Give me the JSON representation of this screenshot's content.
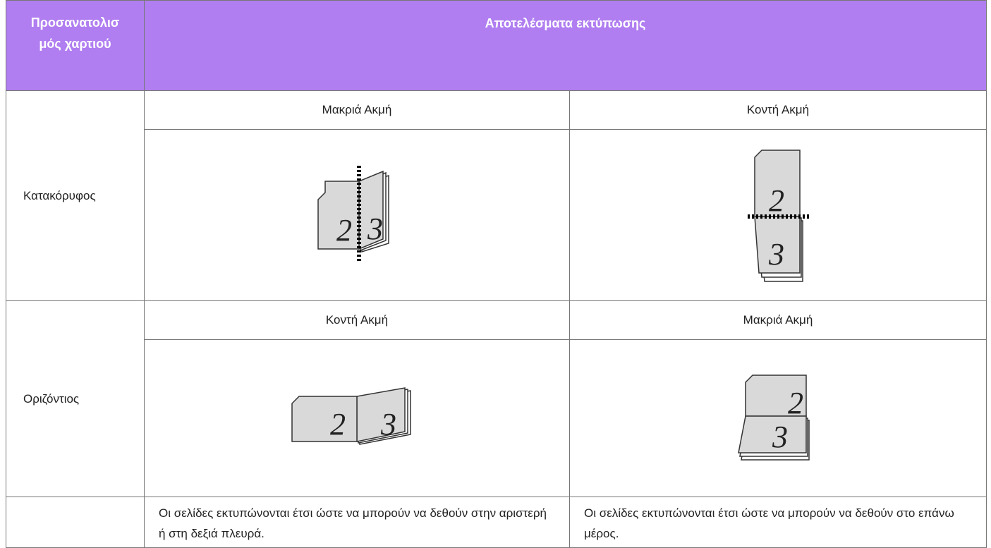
{
  "table": {
    "header": [
      "Προσανατολισμός χαρτιού",
      "Αποτελέσματα εκτύπωσης"
    ],
    "rows": [
      {
        "orientation": "Κατακόρυφος",
        "cells": [
          {
            "binding": "Μακριά Ακμή",
            "pages": [
              "2",
              "3"
            ]
          },
          {
            "binding": "Κοντή Ακμή",
            "pages": [
              "2",
              "3"
            ]
          }
        ]
      },
      {
        "orientation": "Οριζόντιος",
        "cells": [
          {
            "binding": "Κοντή Ακμή",
            "pages": [
              "2",
              "3"
            ]
          },
          {
            "binding": "Μακριά Ακμή",
            "pages": [
              "2",
              "3"
            ]
          }
        ]
      }
    ],
    "notes": [
      "Οι σελίδες εκτυπώνονται έτσι ώστε να μπορούν να δεθούν στην αριστερή ή στη δεξιά πλευρά.",
      "Οι σελίδες εκτυπώνονται έτσι ώστε να μπορούν να δεθούν στο επάνω μέρος."
    ]
  }
}
